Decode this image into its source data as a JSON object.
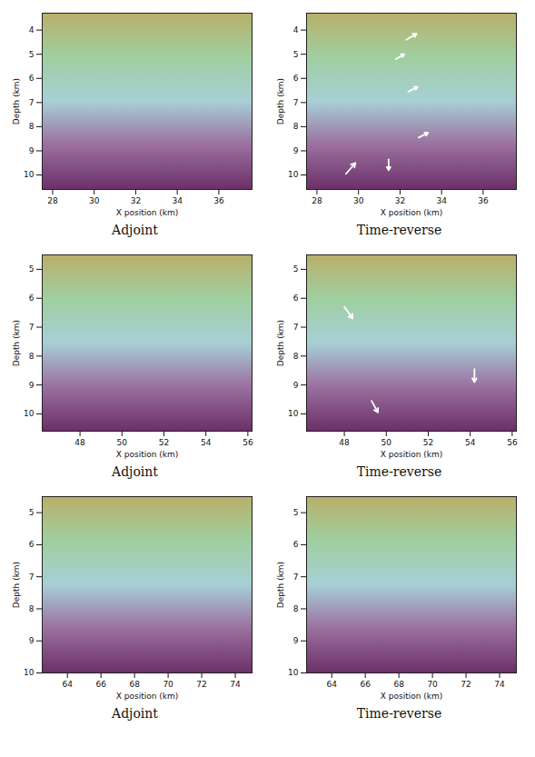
{
  "chart_data": [
    {
      "type": "image",
      "caption": "Adjoint",
      "xlabel": "X position (km)",
      "ylabel": "Depth (km)",
      "xlim": [
        27.5,
        37.6
      ],
      "xticks": [
        28,
        30,
        32,
        34,
        36
      ],
      "ylim": [
        3.3,
        10.6
      ],
      "yticks": [
        4,
        5,
        6,
        7,
        8,
        9,
        10
      ],
      "arrows": []
    },
    {
      "type": "image",
      "caption": "Time-reverse",
      "xlabel": "X position (km)",
      "ylabel": "Depth (km)",
      "xlim": [
        27.5,
        37.6
      ],
      "xticks": [
        28,
        30,
        32,
        34,
        36
      ],
      "ylim": [
        3.3,
        10.6
      ],
      "yticks": [
        4,
        5,
        6,
        7,
        8,
        9,
        10
      ],
      "arrows": [
        {
          "x1": 32.3,
          "y1": 4.4,
          "x2": 32.8,
          "y2": 4.15
        },
        {
          "x1": 31.8,
          "y1": 5.2,
          "x2": 32.2,
          "y2": 5.0
        },
        {
          "x1": 32.4,
          "y1": 6.55,
          "x2": 32.85,
          "y2": 6.35
        },
        {
          "x1": 32.9,
          "y1": 8.45,
          "x2": 33.35,
          "y2": 8.25
        },
        {
          "x1": 29.4,
          "y1": 9.95,
          "x2": 29.85,
          "y2": 9.5
        },
        {
          "x1": 31.45,
          "y1": 9.35,
          "x2": 31.45,
          "y2": 9.8
        }
      ]
    },
    {
      "type": "image",
      "caption": "Adjoint",
      "xlabel": "X position (km)",
      "ylabel": "Depth (km)",
      "xlim": [
        46.2,
        56.2
      ],
      "xticks": [
        48,
        50,
        52,
        54,
        56
      ],
      "ylim": [
        4.5,
        10.6
      ],
      "yticks": [
        5,
        6,
        7,
        8,
        9,
        10
      ],
      "arrows": []
    },
    {
      "type": "image",
      "caption": "Time-reverse",
      "xlabel": "X position (km)",
      "ylabel": "Depth (km)",
      "xlim": [
        46.2,
        56.2
      ],
      "xticks": [
        48,
        50,
        52,
        54,
        56
      ],
      "ylim": [
        4.5,
        10.6
      ],
      "yticks": [
        5,
        6,
        7,
        8,
        9,
        10
      ],
      "arrows": [
        {
          "x1": 48.0,
          "y1": 6.3,
          "x2": 48.4,
          "y2": 6.7
        },
        {
          "x1": 54.2,
          "y1": 8.45,
          "x2": 54.2,
          "y2": 8.9
        },
        {
          "x1": 49.3,
          "y1": 9.55,
          "x2": 49.6,
          "y2": 9.95
        }
      ]
    },
    {
      "type": "image",
      "caption": "Adjoint",
      "xlabel": "X position (km)",
      "ylabel": "Depth (km)",
      "xlim": [
        62.5,
        75.0
      ],
      "xticks": [
        64,
        66,
        68,
        70,
        72,
        74
      ],
      "ylim": [
        4.5,
        10.0
      ],
      "yticks": [
        5,
        6,
        7,
        8,
        9,
        10
      ],
      "arrows": []
    },
    {
      "type": "image",
      "caption": "Time-reverse",
      "xlabel": "X position (km)",
      "ylabel": "Depth (km)",
      "xlim": [
        62.5,
        75.0
      ],
      "xticks": [
        64,
        66,
        68,
        70,
        72,
        74
      ],
      "ylim": [
        4.5,
        10.0
      ],
      "yticks": [
        5,
        6,
        7,
        8,
        9,
        10
      ],
      "arrows": []
    }
  ]
}
